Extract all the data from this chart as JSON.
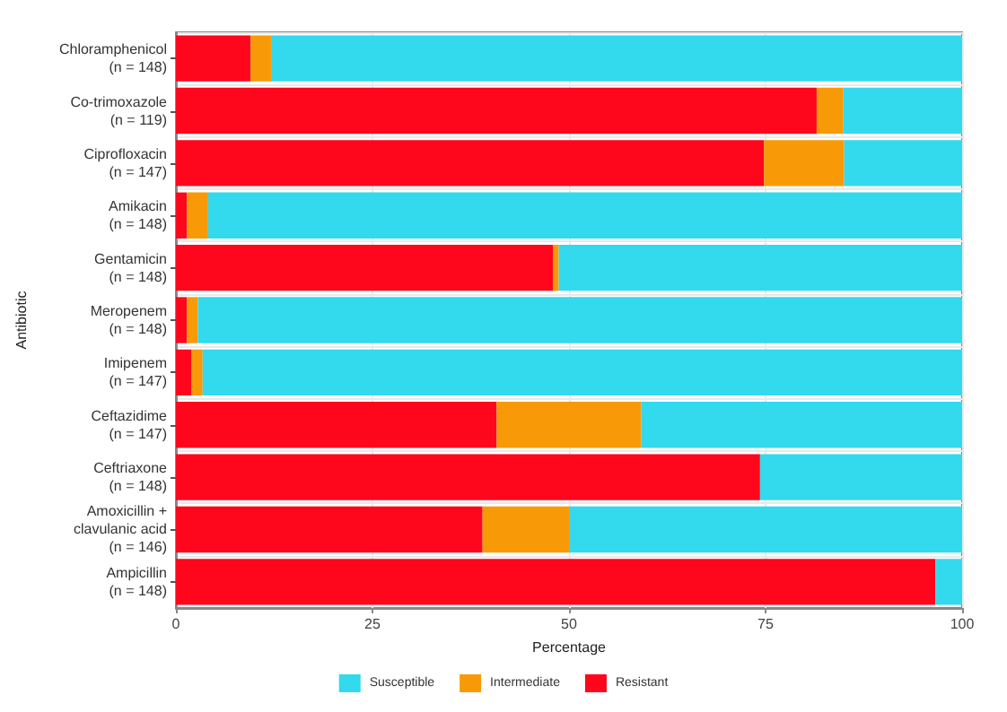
{
  "chart_data": {
    "type": "bar",
    "orientation": "horizontal",
    "stacked": true,
    "xlabel": "Percentage",
    "ylabel": "Antibiotic",
    "categories": [
      "Chloramphenicol\n(n = 148)",
      "Co-trimoxazole\n(n = 119)",
      "Ciprofloxacin\n(n = 147)",
      "Amikacin\n(n = 148)",
      "Gentamicin\n(n = 148)",
      "Meropenem\n(n = 148)",
      "Imipenem\n(n = 147)",
      "Ceftazidime\n(n = 147)",
      "Ceftriaxone\n(n = 148)",
      "Amoxicillin +\nclavulanic acid\n(n = 146)",
      "Ampicillin\n(n = 148)"
    ],
    "series": [
      {
        "name": "Resistant",
        "color": "#fe061c",
        "values": [
          9.5,
          81.5,
          74.8,
          1.4,
          48.0,
          1.4,
          2.0,
          40.8,
          74.3,
          39.0,
          96.6
        ]
      },
      {
        "name": "Intermediate",
        "color": "#f89a08",
        "values": [
          2.7,
          3.4,
          10.2,
          2.7,
          0.7,
          1.4,
          1.4,
          18.4,
          0,
          11.0,
          0
        ]
      },
      {
        "name": "Susceptible",
        "color": "#33d9ed",
        "values": [
          87.8,
          15.1,
          15.0,
          95.9,
          51.3,
          97.2,
          96.6,
          40.8,
          25.7,
          50.0,
          3.4
        ]
      }
    ],
    "xlim": [
      0,
      100
    ],
    "xticks": [
      0,
      25,
      50,
      75,
      100
    ],
    "grid": true,
    "legend": "bottom"
  }
}
